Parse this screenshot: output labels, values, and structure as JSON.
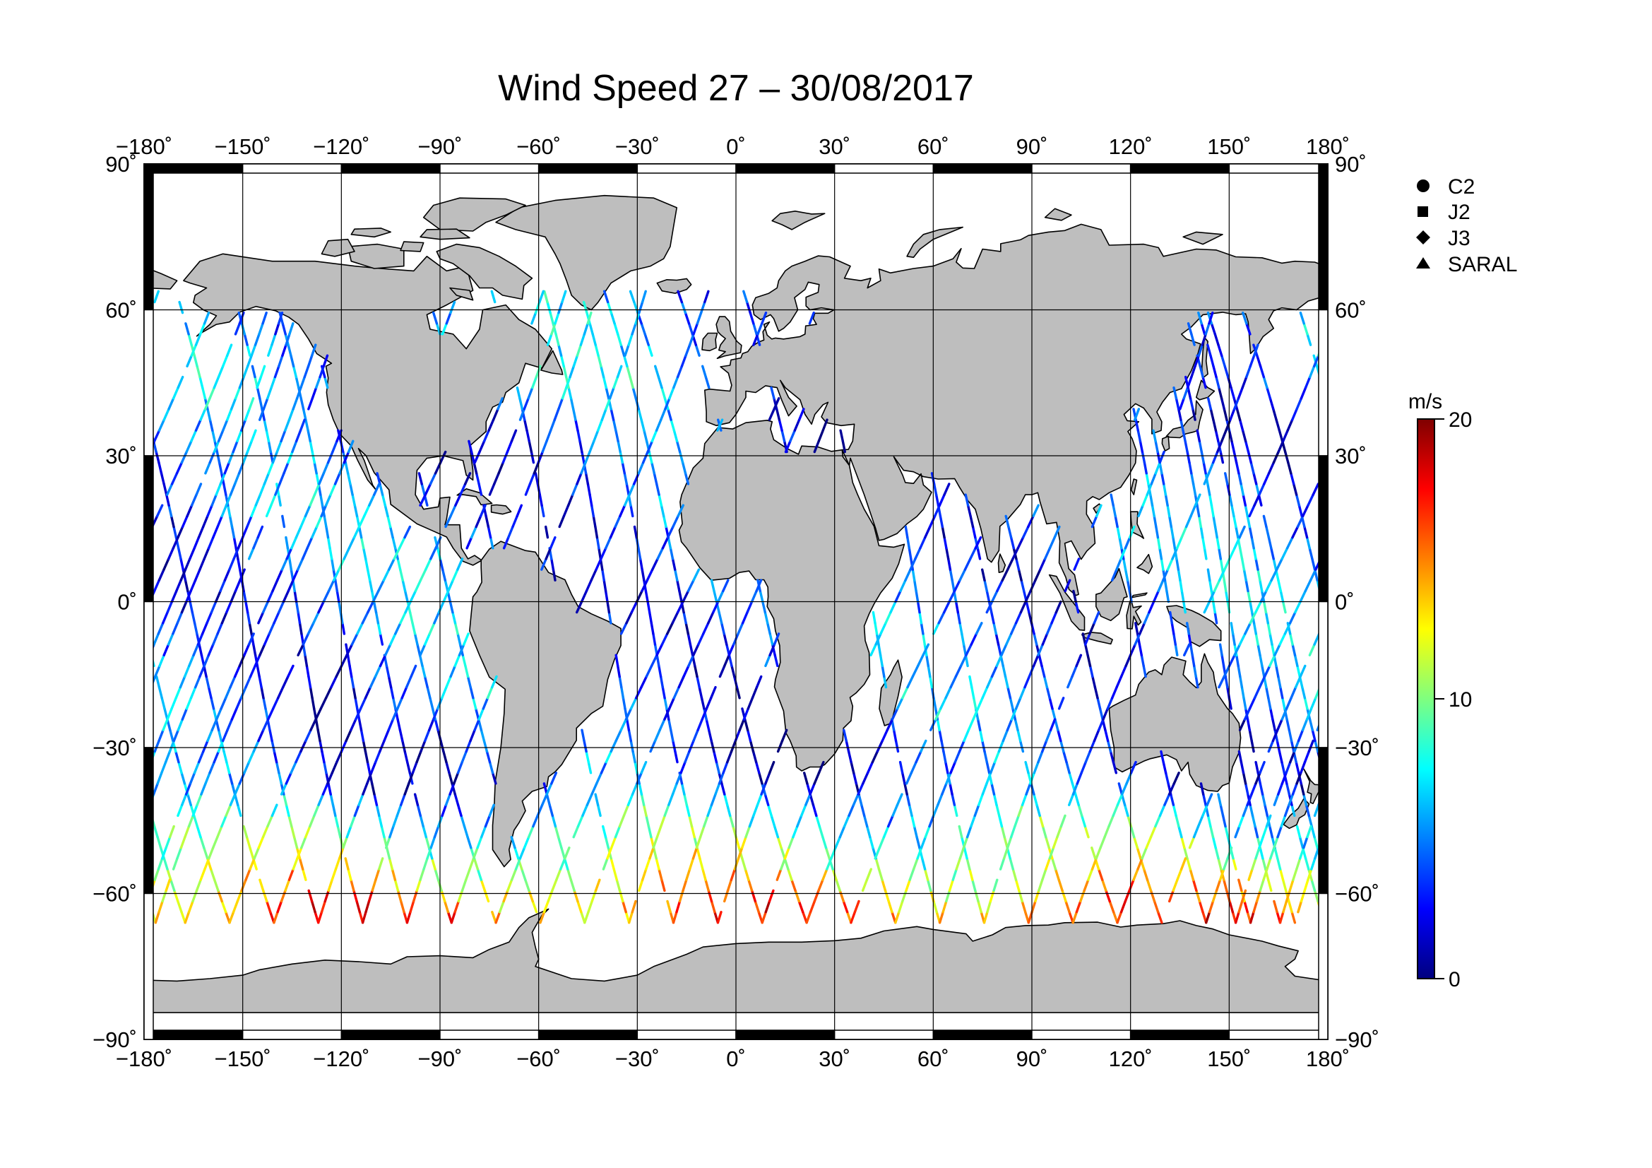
{
  "title": "Wind Speed 27 – 30/08/2017",
  "map": {
    "projection": "equirectangular",
    "lon_range": [
      -180,
      180
    ],
    "lat_range": [
      -90,
      90
    ],
    "lon_ticks": [
      -180,
      -150,
      -120,
      -90,
      -60,
      -30,
      0,
      30,
      60,
      90,
      120,
      150,
      180
    ],
    "lat_ticks": [
      90,
      60,
      30,
      0,
      -30,
      -60,
      -90
    ],
    "lon_tick_labels": [
      "−180˚",
      "−150˚",
      "−120˚",
      "−90˚",
      "−60˚",
      "−30˚",
      "0˚",
      "30˚",
      "60˚",
      "90˚",
      "120˚",
      "150˚",
      "180˚"
    ],
    "lat_tick_labels": [
      "90˚",
      "60˚",
      "30˚",
      "0˚",
      "−30˚",
      "−60˚",
      "−90˚"
    ],
    "grid": true,
    "land_color": "#bebebe",
    "ocean_color": "#ffffff",
    "track_data_extent": {
      "lat_min": -66,
      "lat_max": 66
    }
  },
  "legend": {
    "placement": "right",
    "items": [
      {
        "label": "C2",
        "symbol": "circle-icon"
      },
      {
        "label": "J2",
        "symbol": "square-icon"
      },
      {
        "label": "J3",
        "symbol": "diamond-icon"
      },
      {
        "label": "SARAL",
        "symbol": "triangle-icon"
      }
    ]
  },
  "colorbar": {
    "unit": "m/s",
    "min": 0,
    "max": 20,
    "ticks": [
      20,
      10,
      0
    ],
    "tick_labels": [
      "20",
      "10",
      "0"
    ],
    "colormap": "jet",
    "colors": [
      "#00007f",
      "#0000ff",
      "#007fff",
      "#00ffff",
      "#7fff7f",
      "#ffff00",
      "#ff7f00",
      "#ff0000",
      "#7f0000"
    ]
  }
}
